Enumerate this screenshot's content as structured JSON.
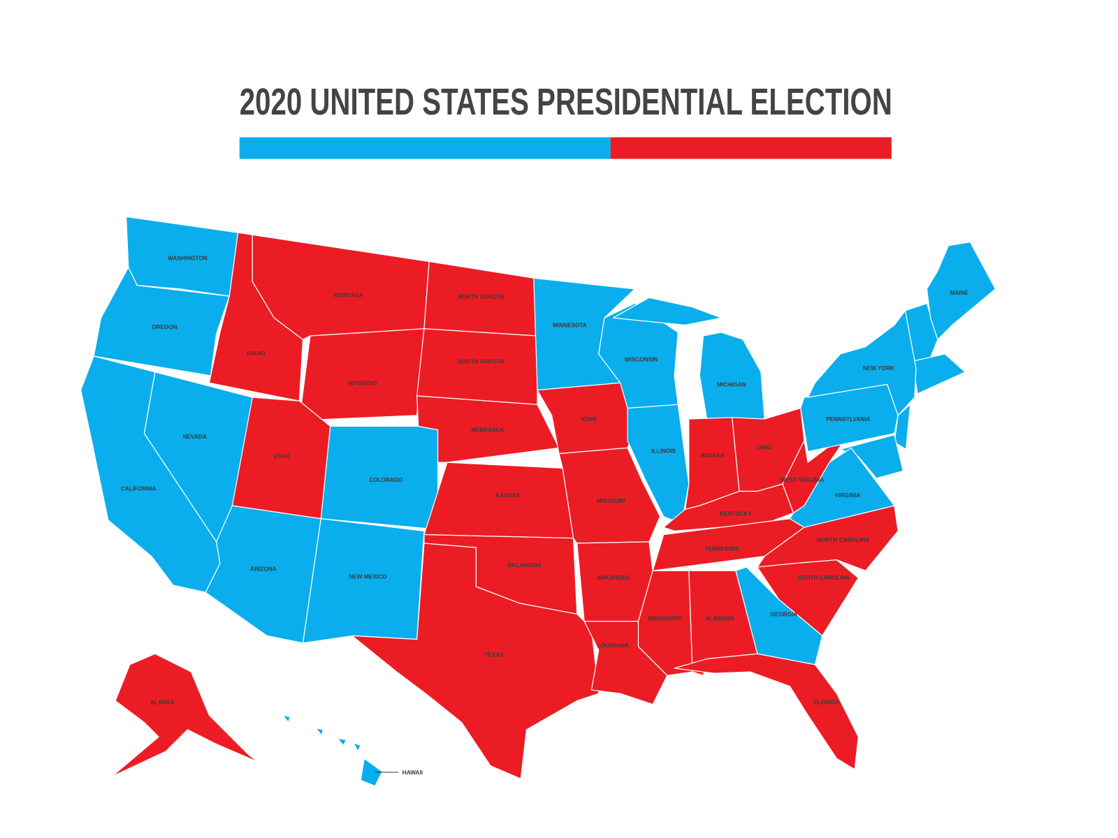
{
  "header": {
    "title": "2020 UNITED STATES PRESIDENTIAL ELECTION"
  },
  "bar": {
    "segments": [
      {
        "color": "#0aaeec",
        "value": 56.9
      },
      {
        "color": "#ec1c24",
        "value": 43.1
      }
    ]
  },
  "states": [
    {
      "name": "WASHINGTON",
      "color": "#0aaeec"
    },
    {
      "name": "OREGON",
      "color": "#0aaeec"
    },
    {
      "name": "CALIFORNIA",
      "color": "#0aaeec"
    },
    {
      "name": "NEVADA",
      "color": "#0aaeec"
    },
    {
      "name": "IDAHO",
      "color": "#ec1c24"
    },
    {
      "name": "MONTANA",
      "color": "#ec1c24"
    },
    {
      "name": "WYOMING",
      "color": "#ec1c24"
    },
    {
      "name": "UTAH",
      "color": "#ec1c24"
    },
    {
      "name": "COLORADO",
      "color": "#0aaeec"
    },
    {
      "name": "ARIZONA",
      "color": "#0aaeec"
    },
    {
      "name": "NEW MEXICO",
      "color": "#0aaeec"
    },
    {
      "name": "NORTH DAKOTA",
      "color": "#ec1c24"
    },
    {
      "name": "SOUTH DAKOTA",
      "color": "#ec1c24"
    },
    {
      "name": "NEBRASKA",
      "color": "#ec1c24"
    },
    {
      "name": "KANSAS",
      "color": "#ec1c24"
    },
    {
      "name": "OKLAHOMA",
      "color": "#ec1c24"
    },
    {
      "name": "TEXAS",
      "color": "#ec1c24"
    },
    {
      "name": "MINNESOTA",
      "color": "#0aaeec"
    },
    {
      "name": "IOWA",
      "color": "#ec1c24"
    },
    {
      "name": "MISSOURI",
      "color": "#ec1c24"
    },
    {
      "name": "ARKANSAS",
      "color": "#ec1c24"
    },
    {
      "name": "LOUISIANA",
      "color": "#ec1c24"
    },
    {
      "name": "WISCONSIN",
      "color": "#0aaeec"
    },
    {
      "name": "ILLINOIS",
      "color": "#0aaeec"
    },
    {
      "name": "MICHIGAN",
      "color": "#0aaeec"
    },
    {
      "name": "INDIANA",
      "color": "#ec1c24"
    },
    {
      "name": "OHIO",
      "color": "#ec1c24"
    },
    {
      "name": "KENTUCKY",
      "color": "#ec1c24"
    },
    {
      "name": "TENNESSEE",
      "color": "#ec1c24"
    },
    {
      "name": "WEST VIRGINIA",
      "color": "#ec1c24"
    },
    {
      "name": "VIRGINIA",
      "color": "#0aaeec"
    },
    {
      "name": "NORTH CAROLINA",
      "color": "#ec1c24"
    },
    {
      "name": "SOUTH CAROLINA",
      "color": "#ec1c24"
    },
    {
      "name": "GEORGIA",
      "color": "#0aaeec"
    },
    {
      "name": "ALABAMA",
      "color": "#ec1c24"
    },
    {
      "name": "MISSISSIPPI",
      "color": "#ec1c24"
    },
    {
      "name": "FLORIDA",
      "color": "#ec1c24"
    },
    {
      "name": "PENNSYLVANIA",
      "color": "#0aaeec"
    },
    {
      "name": "NEW YORK",
      "color": "#0aaeec"
    },
    {
      "name": "MAINE",
      "color": "#0aaeec"
    },
    {
      "name": "ALASKA",
      "color": "#ec1c24"
    },
    {
      "name": "HAWAII",
      "color": "#0aaeec"
    }
  ]
}
